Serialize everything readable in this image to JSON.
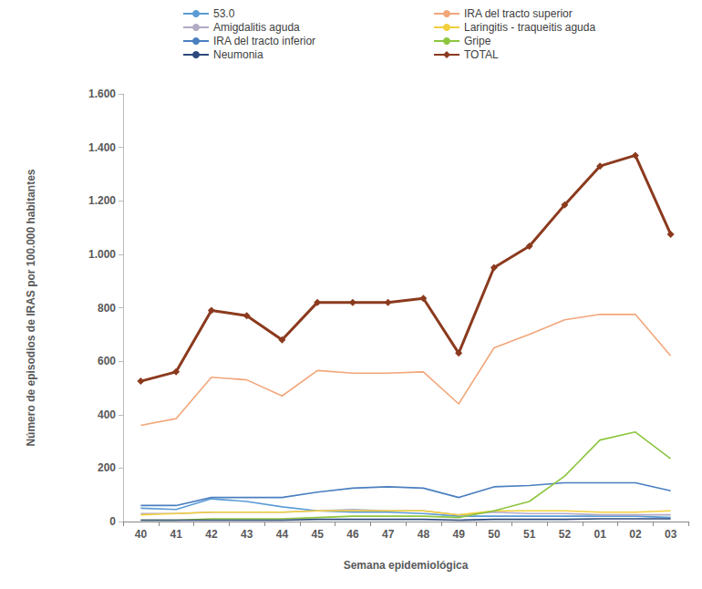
{
  "chart_data": {
    "type": "line",
    "x_label": "Semana epidemiológica",
    "y_label": "Número de episodios de IRAS por 100.000 habitantes",
    "categories": [
      "40",
      "41",
      "42",
      "43",
      "44",
      "45",
      "46",
      "47",
      "48",
      "49",
      "50",
      "51",
      "52",
      "01",
      "02",
      "03"
    ],
    "series": [
      {
        "name": "53.0",
        "color": "#5b9bd5",
        "marker": "none",
        "line_style": "solid",
        "values": [
          50,
          45,
          85,
          75,
          55,
          40,
          35,
          35,
          30,
          20,
          20,
          20,
          20,
          20,
          20,
          15
        ]
      },
      {
        "name": "IRA del tracto superior",
        "color": "#f2a67a",
        "marker": "none",
        "line_style": "solid",
        "values": [
          360,
          385,
          540,
          530,
          470,
          565,
          555,
          555,
          560,
          440,
          650,
          700,
          755,
          775,
          775,
          620
        ]
      },
      {
        "name": "Amigdalitis aguda",
        "color": "#b3aac4",
        "marker": "none",
        "line_style": "solid",
        "values": [
          30,
          30,
          35,
          35,
          35,
          40,
          45,
          40,
          40,
          25,
          35,
          30,
          30,
          25,
          25,
          25
        ]
      },
      {
        "name": "Laringitis - traqueitis aguda",
        "color": "#f2cf3c",
        "marker": "none",
        "line_style": "solid",
        "values": [
          25,
          30,
          35,
          35,
          35,
          40,
          40,
          40,
          40,
          25,
          40,
          40,
          40,
          35,
          35,
          40
        ]
      },
      {
        "name": "IRA del tracto inferior",
        "color": "#4a7fc0",
        "marker": "none",
        "line_style": "solid",
        "values": [
          60,
          60,
          90,
          90,
          90,
          110,
          125,
          130,
          125,
          90,
          130,
          135,
          145,
          145,
          145,
          115
        ]
      },
      {
        "name": "Gripe",
        "color": "#8cc63f",
        "marker": "none",
        "line_style": "solid",
        "values": [
          5,
          5,
          10,
          10,
          10,
          15,
          20,
          20,
          20,
          15,
          40,
          75,
          170,
          305,
          335,
          235
        ]
      },
      {
        "name": "Neumonia",
        "color": "#2e4a7d",
        "marker": "none",
        "line_style": "solid",
        "values": [
          5,
          5,
          5,
          5,
          5,
          8,
          8,
          8,
          8,
          5,
          8,
          8,
          8,
          10,
          10,
          10
        ]
      },
      {
        "name": "TOTAL",
        "color": "#8b3a1e",
        "marker": "diamond",
        "line_style": "solid",
        "values": [
          525,
          560,
          790,
          770,
          680,
          820,
          820,
          820,
          835,
          630,
          950,
          1030,
          1185,
          1330,
          1370,
          1075
        ]
      }
    ],
    "ylim": [
      0,
      1600
    ],
    "yticks": [
      0,
      200,
      400,
      600,
      800,
      {
        "value": 1000,
        "label": "1.000"
      },
      {
        "value": 1200,
        "label": "1.200"
      },
      {
        "value": 1400,
        "label": "1.400"
      },
      {
        "value": 1600,
        "label": "1.600"
      }
    ],
    "grid": false,
    "legend": "top"
  }
}
